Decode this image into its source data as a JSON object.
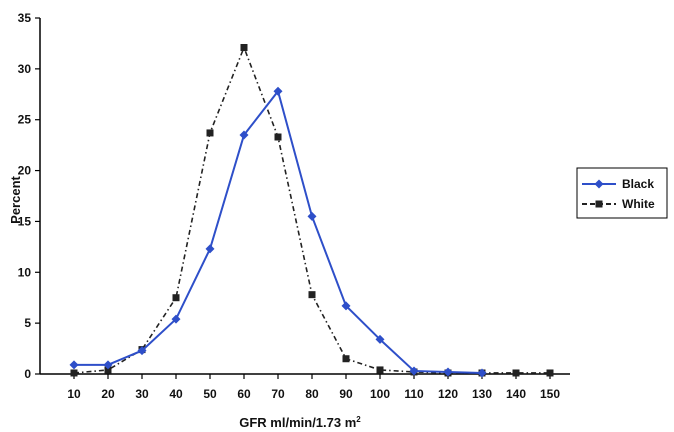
{
  "chart_data": {
    "type": "line",
    "title": "",
    "xlabel": "GFR ml/min/1.73 m",
    "xlabel_superscript": "2",
    "ylabel": "Percent",
    "x": [
      10,
      20,
      30,
      40,
      50,
      60,
      70,
      80,
      90,
      100,
      110,
      120,
      130,
      140,
      150
    ],
    "xlim": [
      10,
      150
    ],
    "ylim": [
      0,
      35
    ],
    "yticks": [
      0,
      5,
      10,
      15,
      20,
      25,
      30,
      35
    ],
    "grid": false,
    "legend_position": "right",
    "series": [
      {
        "name": "Black",
        "color": "#2E4FC9",
        "style": "solid",
        "marker": "diamond",
        "values": [
          0.9,
          0.9,
          2.3,
          5.4,
          12.3,
          23.5,
          27.8,
          15.5,
          6.7,
          3.4,
          0.3,
          0.2,
          0.1,
          null,
          null
        ]
      },
      {
        "name": "White",
        "color": "#222222",
        "style": "dashed",
        "marker": "square",
        "values": [
          0.1,
          0.4,
          2.4,
          7.5,
          23.7,
          32.1,
          23.3,
          7.8,
          1.5,
          0.4,
          0.2,
          0.1,
          0.1,
          0.1,
          0.1
        ]
      }
    ]
  }
}
